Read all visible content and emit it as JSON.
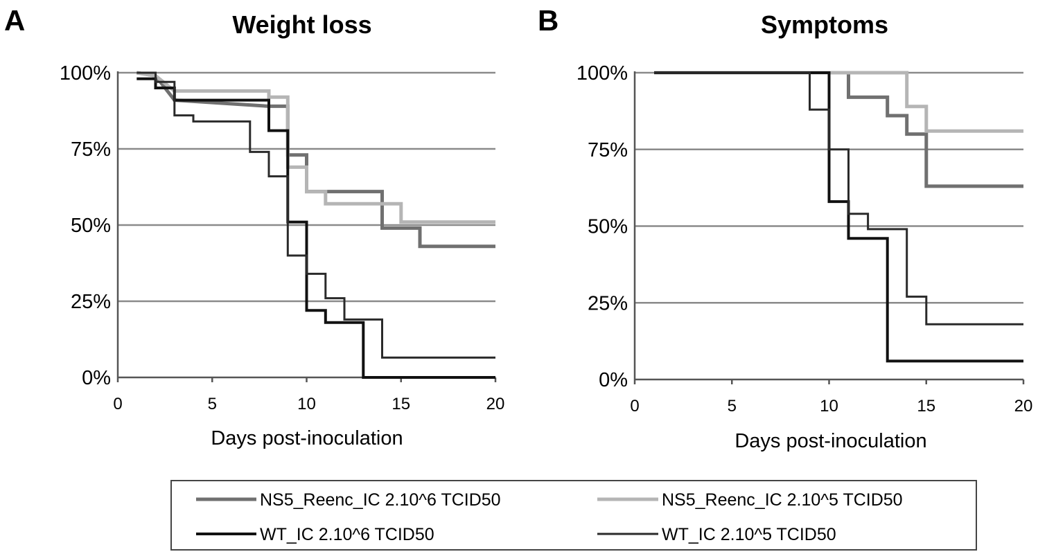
{
  "chart_data": [
    {
      "panel": "A",
      "type": "line",
      "title": "Weight loss",
      "xlabel": "Days post-inoculation",
      "ylabel": "",
      "xlim": [
        0,
        20
      ],
      "ylim": [
        0,
        100
      ],
      "x_ticks": [
        0,
        5,
        10,
        15,
        20
      ],
      "y_ticks": [
        0,
        25,
        50,
        75,
        100
      ],
      "y_tick_labels": [
        "0%",
        "25%",
        "50%",
        "75%",
        "100%"
      ],
      "grid": true,
      "step": true,
      "series": [
        {
          "name": "NS5_Reenc_IC 2.10^6 TCID50",
          "color": "#707070",
          "points": [
            [
              1,
              100
            ],
            [
              2,
              99
            ],
            [
              3,
              91
            ],
            [
              8,
              89
            ],
            [
              9,
              89
            ],
            [
              9,
              73
            ],
            [
              10,
              73
            ],
            [
              10,
              61
            ],
            [
              14,
              61
            ],
            [
              14,
              49
            ],
            [
              16,
              49
            ],
            [
              16,
              43
            ],
            [
              20,
              43
            ]
          ]
        },
        {
          "name": "NS5_Reenc_IC 2.10^5 TCID50",
          "color": "#b5b5b5",
          "points": [
            [
              1,
              100
            ],
            [
              2,
              99
            ],
            [
              3,
              94
            ],
            [
              8,
              94
            ],
            [
              8,
              92
            ],
            [
              9,
              92
            ],
            [
              9,
              69
            ],
            [
              10,
              69
            ],
            [
              10,
              61
            ],
            [
              11,
              61
            ],
            [
              11,
              57
            ],
            [
              14,
              57
            ],
            [
              15,
              57
            ],
            [
              15,
              51
            ],
            [
              20,
              51
            ]
          ]
        },
        {
          "name": "WT_IC 2.10^6 TCID50",
          "color": "#111111",
          "points": [
            [
              1,
              98
            ],
            [
              2,
              98
            ],
            [
              2,
              95
            ],
            [
              3,
              95
            ],
            [
              3,
              91
            ],
            [
              8,
              91
            ],
            [
              8,
              81
            ],
            [
              9,
              81
            ],
            [
              9,
              51
            ],
            [
              10,
              51
            ],
            [
              10,
              22
            ],
            [
              11,
              22
            ],
            [
              11,
              18
            ],
            [
              12,
              18
            ],
            [
              12,
              18
            ],
            [
              13,
              18
            ],
            [
              13,
              0
            ],
            [
              20,
              0
            ]
          ]
        },
        {
          "name": "WT_IC 2.10^5 TCID50",
          "color": "#2a2a2a",
          "points": [
            [
              1,
              100
            ],
            [
              2,
              100
            ],
            [
              2,
              97
            ],
            [
              3,
              97
            ],
            [
              3,
              86
            ],
            [
              4,
              86
            ],
            [
              4,
              84
            ],
            [
              7,
              84
            ],
            [
              7,
              74
            ],
            [
              8,
              74
            ],
            [
              8,
              66
            ],
            [
              9,
              66
            ],
            [
              9,
              40
            ],
            [
              10,
              40
            ],
            [
              10,
              34
            ],
            [
              11,
              34
            ],
            [
              11,
              26
            ],
            [
              12,
              26
            ],
            [
              12,
              19
            ],
            [
              14,
              19
            ],
            [
              14,
              6.5
            ],
            [
              20,
              6.5
            ]
          ]
        }
      ]
    },
    {
      "panel": "B",
      "type": "line",
      "title": "Symptoms",
      "xlabel": "Days post-inoculation",
      "ylabel": "",
      "xlim": [
        0,
        20
      ],
      "ylim": [
        0,
        100
      ],
      "x_ticks": [
        0,
        5,
        10,
        15,
        20
      ],
      "y_ticks": [
        0,
        25,
        50,
        75,
        100
      ],
      "y_tick_labels": [
        "0%",
        "25%",
        "50%",
        "75%",
        "100%"
      ],
      "grid": true,
      "step": true,
      "series": [
        {
          "name": "NS5_Reenc_IC 2.10^6 TCID50",
          "color": "#707070",
          "points": [
            [
              1,
              100
            ],
            [
              11,
              100
            ],
            [
              11,
              92
            ],
            [
              13,
              92
            ],
            [
              13,
              86
            ],
            [
              14,
              86
            ],
            [
              14,
              80
            ],
            [
              15,
              80
            ],
            [
              15,
              63
            ],
            [
              20,
              63
            ]
          ]
        },
        {
          "name": "NS5_Reenc_IC 2.10^5 TCID50",
          "color": "#b5b5b5",
          "points": [
            [
              1,
              100
            ],
            [
              14,
              100
            ],
            [
              14,
              89
            ],
            [
              15,
              89
            ],
            [
              15,
              81
            ],
            [
              20,
              81
            ]
          ]
        },
        {
          "name": "WT_IC 2.10^6 TCID50",
          "color": "#111111",
          "points": [
            [
              1,
              100
            ],
            [
              10,
              100
            ],
            [
              10,
              58
            ],
            [
              11,
              58
            ],
            [
              11,
              46
            ],
            [
              13,
              46
            ],
            [
              13,
              6
            ],
            [
              20,
              6
            ]
          ]
        },
        {
          "name": "WT_IC 2.10^5 TCID50",
          "color": "#2a2a2a",
          "points": [
            [
              1,
              100
            ],
            [
              9,
              100
            ],
            [
              9,
              88
            ],
            [
              10,
              88
            ],
            [
              10,
              75
            ],
            [
              11,
              75
            ],
            [
              11,
              54
            ],
            [
              12,
              54
            ],
            [
              12,
              49
            ],
            [
              14,
              49
            ],
            [
              14,
              27
            ],
            [
              15,
              27
            ],
            [
              15,
              18
            ],
            [
              20,
              18
            ]
          ]
        }
      ]
    }
  ],
  "legend": {
    "placement": "bottom",
    "items": [
      {
        "label": "NS5_Reenc_IC 2.10^6 TCID50",
        "color": "#707070"
      },
      {
        "label": "NS5_Reenc_IC 2.10^5 TCID50",
        "color": "#b5b5b5"
      },
      {
        "label": "WT_IC 2.10^6 TCID50",
        "color": "#111111"
      },
      {
        "label": "WT_IC 2.10^5 TCID50",
        "color": "#2a2a2a"
      }
    ]
  }
}
